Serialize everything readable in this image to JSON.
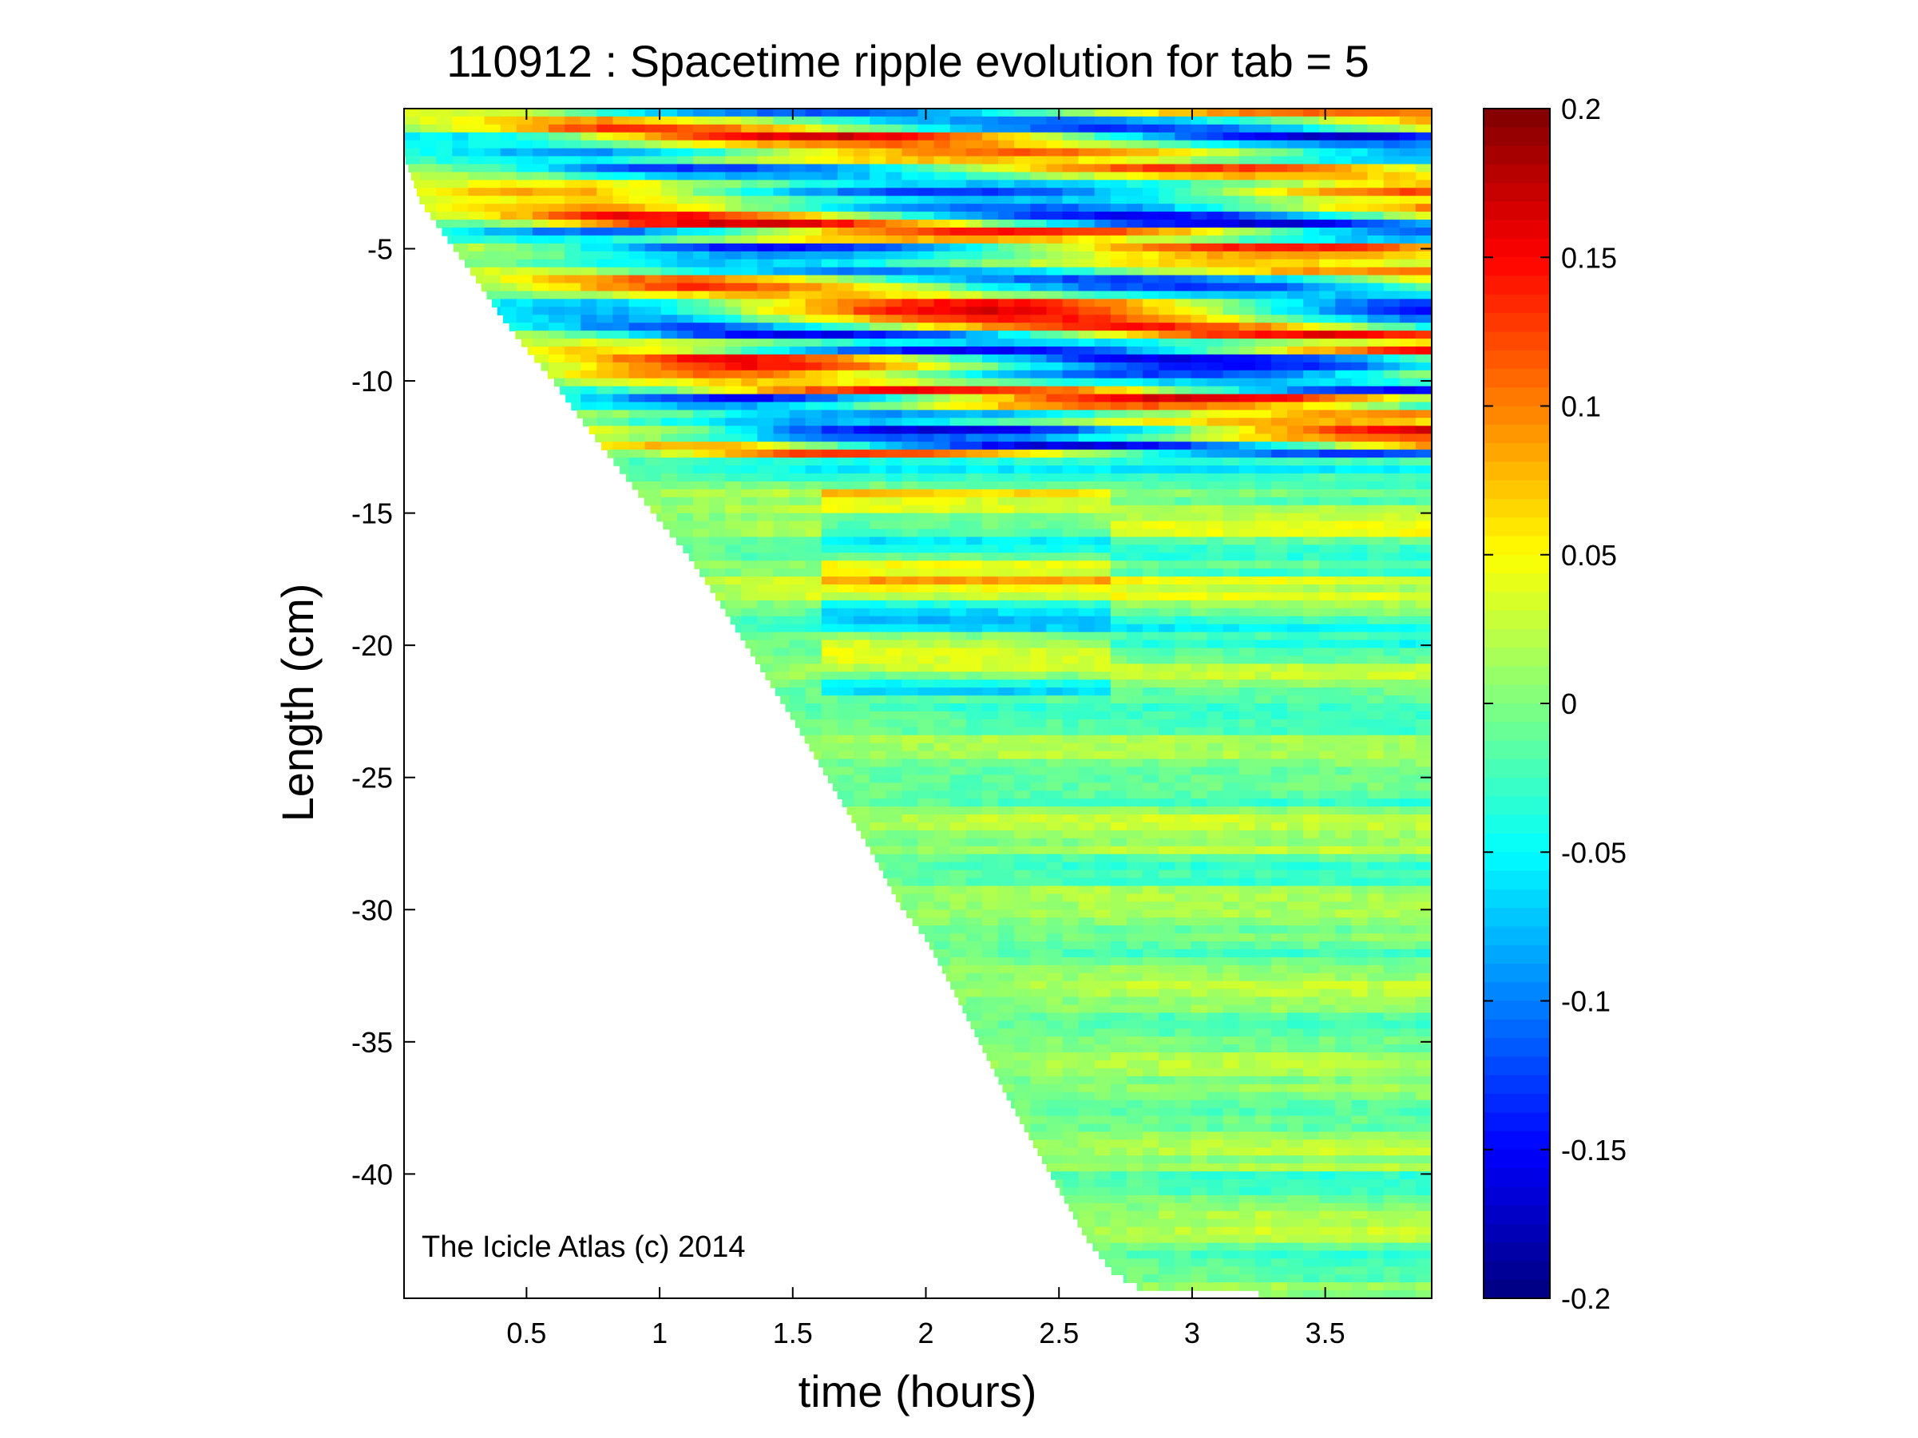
{
  "chart_data": {
    "type": "heatmap",
    "title": "110912 : Spacetime ripple evolution for tab = 5",
    "xlabel": "time (hours)",
    "ylabel": "Length (cm)",
    "xlim": [
      0.04,
      3.9
    ],
    "ylim": [
      -44.7,
      0.3
    ],
    "x_ticks": [
      0.5,
      1,
      1.5,
      2,
      2.5,
      3,
      3.5
    ],
    "x_tick_labels": [
      "0.5",
      "1",
      "1.5",
      "2",
      "2.5",
      "3",
      "3.5"
    ],
    "y_ticks": [
      -5,
      -10,
      -15,
      -20,
      -25,
      -30,
      -35,
      -40
    ],
    "y_tick_labels": [
      "-5",
      "-10",
      "-15",
      "-20",
      "-25",
      "-30",
      "-35",
      "-40"
    ],
    "colorbar": {
      "colormap": "jet",
      "clim": [
        -0.2,
        0.2
      ],
      "ticks": [
        0.2,
        0.15,
        0.1,
        0.05,
        0,
        -0.05,
        -0.1,
        -0.15,
        -0.2
      ],
      "tick_labels": [
        "0.2",
        "0.15",
        "0.1",
        "0.05",
        "0",
        "-0.05",
        "-0.1",
        "-0.15",
        "-0.2"
      ]
    },
    "growth_front": [
      [
        0.04,
        -1.5
      ],
      [
        0.1,
        -3.2
      ],
      [
        0.2,
        -4.6
      ],
      [
        0.3,
        -6
      ],
      [
        0.4,
        -7.5
      ],
      [
        0.5,
        -8.8
      ],
      [
        0.6,
        -10
      ],
      [
        0.7,
        -11.4
      ],
      [
        0.8,
        -12.7
      ],
      [
        0.9,
        -14
      ],
      [
        1.0,
        -15.3
      ],
      [
        1.1,
        -16.5
      ],
      [
        1.2,
        -18
      ],
      [
        1.3,
        -19.6
      ],
      [
        1.4,
        -21.2
      ],
      [
        1.5,
        -22.8
      ],
      [
        1.6,
        -24.5
      ],
      [
        1.7,
        -26.2
      ],
      [
        1.8,
        -27.9
      ],
      [
        1.9,
        -29.8
      ],
      [
        2.0,
        -31.1
      ],
      [
        2.1,
        -33
      ],
      [
        2.2,
        -35
      ],
      [
        2.3,
        -37
      ],
      [
        2.4,
        -38.8
      ],
      [
        2.5,
        -40.6
      ],
      [
        2.6,
        -42.4
      ],
      [
        2.7,
        -43.7
      ],
      [
        2.8,
        -44.3
      ],
      [
        3.0,
        -44.5
      ],
      [
        3.5,
        -44.6
      ],
      [
        3.9,
        -44.7
      ]
    ],
    "annotation": "The Icicle Atlas (c) 2014"
  }
}
